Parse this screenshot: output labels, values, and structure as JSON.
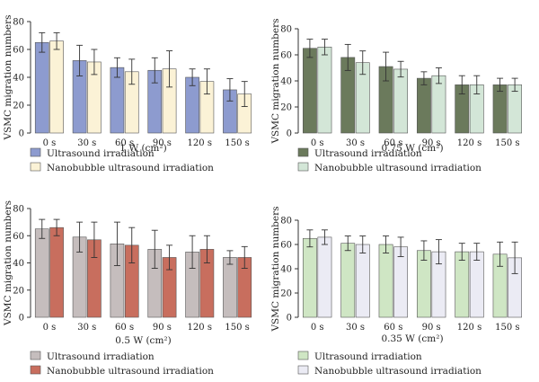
{
  "chart_data": [
    {
      "type": "bar",
      "categories": [
        "0 s",
        "30 s",
        "60 s",
        "90 s",
        "120 s",
        "150 s"
      ],
      "ylabel": "VSMC migration numbers",
      "xlabel": "1 W (cm²)",
      "ylim": [
        0,
        80
      ],
      "yticks": [
        0,
        20,
        40,
        60,
        80
      ],
      "grid": false,
      "legend_position": "bottom-left",
      "series": [
        {
          "name": "Ultrasound irradiation",
          "color": "#8d9bcf",
          "values": [
            65,
            52,
            47,
            45,
            40,
            31
          ],
          "errors": [
            7,
            11,
            7,
            9,
            6,
            8
          ]
        },
        {
          "name": "Nanobubble ultrasound irradiation",
          "color": "#fbf2d6",
          "values": [
            66,
            51,
            44,
            46,
            37,
            28
          ],
          "errors": [
            6,
            9,
            9,
            13,
            9,
            9
          ]
        }
      ]
    },
    {
      "type": "bar",
      "categories": [
        "0 s",
        "30 s",
        "60 s",
        "90 s",
        "120 s",
        "150 s"
      ],
      "ylabel": "VSMC migration numbers",
      "xlabel": "0.75 W (cm²)",
      "ylim": [
        0,
        80
      ],
      "yticks": [
        0,
        20,
        40,
        60,
        80
      ],
      "grid": false,
      "legend_position": "bottom-left",
      "series": [
        {
          "name": "Ultrasound irradiation",
          "color": "#6b7a5c",
          "values": [
            65,
            58,
            51,
            42,
            37,
            37
          ],
          "errors": [
            7,
            10,
            11,
            5,
            7,
            5
          ]
        },
        {
          "name": "Nanobubble ultrasound irradiation",
          "color": "#d3e6d7",
          "values": [
            66,
            54,
            49,
            44,
            37,
            37
          ],
          "errors": [
            6,
            9,
            6,
            6,
            7,
            5
          ]
        }
      ]
    },
    {
      "type": "bar",
      "categories": [
        "0 s",
        "30 s",
        "60 s",
        "90 s",
        "120 s",
        "150 s"
      ],
      "ylabel": "VSMC migration numbers",
      "xlabel": "0.5 W (cm²)",
      "ylim": [
        0,
        80
      ],
      "yticks": [
        0,
        20,
        40,
        60,
        80
      ],
      "grid": false,
      "legend_position": "bottom-left",
      "series": [
        {
          "name": "Ultrasound irradiation",
          "color": "#c5bdbd",
          "values": [
            65,
            59,
            54,
            50,
            48,
            44
          ],
          "errors": [
            7,
            11,
            16,
            14,
            12,
            5
          ]
        },
        {
          "name": "Nanobubble ultrasound irradiation",
          "color": "#c86e5e",
          "values": [
            66,
            57,
            53,
            44,
            50,
            44
          ],
          "errors": [
            6,
            13,
            13,
            9,
            10,
            8
          ]
        }
      ]
    },
    {
      "type": "bar",
      "categories": [
        "0 s",
        "30 s",
        "60 s",
        "90 s",
        "120 s",
        "150 s"
      ],
      "ylabel": "VSMC migration numbers",
      "xlabel": "0.35 W (cm²)",
      "ylim": [
        0,
        80
      ],
      "yticks": [
        0,
        20,
        40,
        60,
        80
      ],
      "grid": false,
      "legend_position": "bottom-left",
      "series": [
        {
          "name": "Ultrasound irradiation",
          "color": "#cfe6c4",
          "values": [
            65,
            61,
            60,
            55,
            54,
            52
          ],
          "errors": [
            7,
            6,
            7,
            8,
            7,
            10
          ]
        },
        {
          "name": "Nanobubble ultrasound irradiation",
          "color": "#ebebf4",
          "values": [
            66,
            60,
            58,
            54,
            54,
            49
          ],
          "errors": [
            6,
            7,
            8,
            10,
            7,
            13
          ]
        }
      ]
    }
  ]
}
